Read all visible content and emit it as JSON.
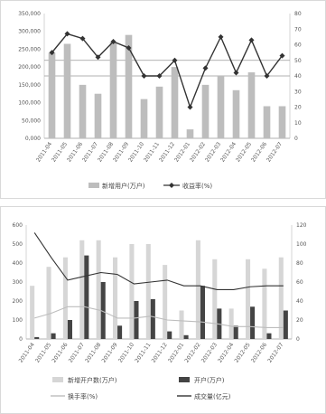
{
  "chart_data": [
    {
      "type": "bar",
      "categories": [
        "2011-04",
        "2011-05",
        "2011-06",
        "2011-07",
        "2011-08",
        "2011-09",
        "2011-10",
        "2011-11",
        "2011-12",
        "2012-01",
        "2012-02",
        "2012-03",
        "2012-04",
        "2012-05",
        "2012-06",
        "2012-07"
      ],
      "ylim_left": [
        0,
        350000
      ],
      "yticks_left": [
        "350,000",
        "300,000",
        "250,000",
        "200,000",
        "150,000",
        "100,000",
        "50,000",
        "0,000"
      ],
      "ylim_right": [
        0,
        80
      ],
      "yticks_right": [
        "80",
        "70",
        "60",
        "50",
        "40",
        "30",
        "20",
        "10",
        "0"
      ],
      "series": [
        {
          "name": "新增用户(万户)",
          "type": "bar",
          "axis": "left",
          "color": "#bdbdbd",
          "values": [
            240000,
            265000,
            150000,
            125000,
            270000,
            290000,
            110000,
            145000,
            200000,
            25000,
            150000,
            175000,
            135000,
            185000,
            90000,
            90000
          ]
        },
        {
          "name": "收益率(%)",
          "type": "line",
          "axis": "right",
          "color": "#333333",
          "values": [
            55,
            67,
            64,
            52,
            62,
            58,
            40,
            40,
            50,
            20,
            45,
            65,
            42,
            63,
            40,
            53
          ]
        }
      ],
      "legend": [
        "新增用户(万户)",
        "收益率(%)"
      ]
    },
    {
      "type": "bar",
      "categories": [
        "2011-04",
        "2011-05",
        "2011-06",
        "2011-07",
        "2011-08",
        "2011-09",
        "2011-10",
        "2011-11",
        "2011-12",
        "2012-01",
        "2012-02",
        "2012-03",
        "2012-04",
        "2012-05",
        "2012-06",
        "2012-07"
      ],
      "ylim_left": [
        0,
        600
      ],
      "yticks_left": [
        "600",
        "500",
        "400",
        "300",
        "200",
        "100",
        "0"
      ],
      "ylim_right": [
        0,
        120
      ],
      "yticks_right": [
        "120",
        "100",
        "80",
        "60",
        "40",
        "20",
        "0"
      ],
      "series": [
        {
          "name": "新增开户数(万户)",
          "type": "bar",
          "axis": "left",
          "color": "#d6d6d6",
          "values": [
            280,
            380,
            430,
            520,
            520,
            430,
            500,
            500,
            390,
            150,
            520,
            420,
            160,
            420,
            370,
            430
          ]
        },
        {
          "name": "开户(万户)",
          "type": "bar",
          "axis": "left",
          "color": "#444444",
          "values": [
            10,
            30,
            100,
            440,
            300,
            70,
            200,
            210,
            40,
            20,
            280,
            160,
            70,
            170,
            30,
            150
          ]
        },
        {
          "name": "成交量(亿元)",
          "type": "line",
          "axis": "right",
          "color": "#333333",
          "values": [
            112,
            86,
            62,
            66,
            70,
            68,
            58,
            60,
            62,
            56,
            56,
            52,
            52,
            55,
            56,
            56
          ]
        },
        {
          "name": "换手率(%)",
          "type": "line",
          "axis": "right",
          "color": "#bdbdbd",
          "values": [
            22,
            27,
            34,
            34,
            30,
            22,
            22,
            24,
            20,
            19,
            18,
            16,
            13,
            13,
            12,
            12
          ]
        }
      ],
      "legend": [
        "新增开户数(万户)",
        "开户(万户)",
        "成交量(亿元)",
        "换手率(%)"
      ]
    }
  ]
}
